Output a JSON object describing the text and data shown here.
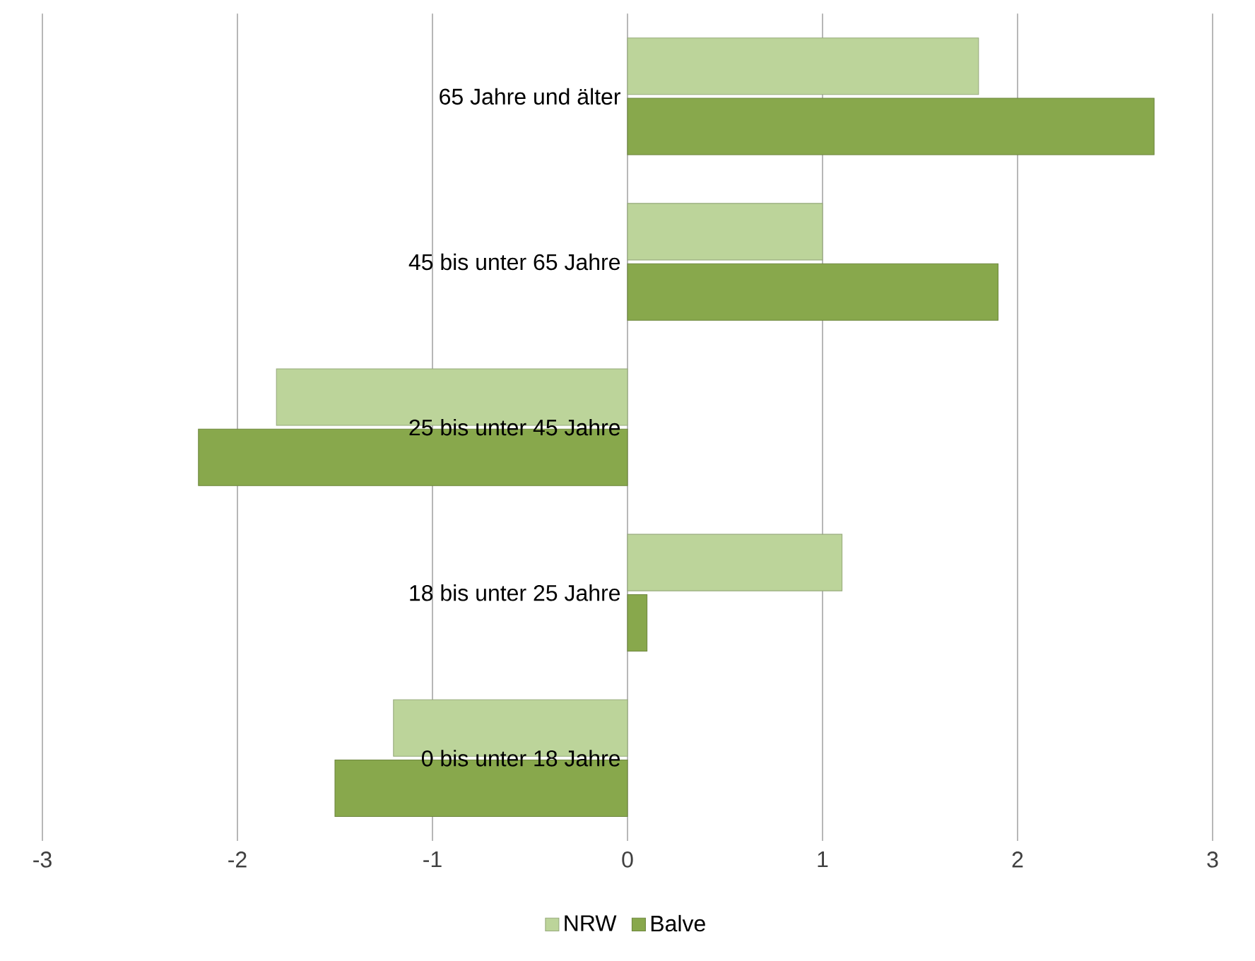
{
  "chart_data": {
    "type": "bar",
    "orientation": "horizontal",
    "categories": [
      "65 Jahre und älter",
      "45 bis unter 65 Jahre",
      "25 bis unter 45 Jahre",
      "18 bis unter 25 Jahre",
      "0 bis unter 18 Jahre"
    ],
    "series": [
      {
        "name": "NRW",
        "color": "#bcd49a",
        "values": [
          1.8,
          1.0,
          -1.8,
          1.1,
          -1.2
        ]
      },
      {
        "name": "Balve",
        "color": "#88a84c",
        "values": [
          2.7,
          1.9,
          -2.2,
          0.1,
          -1.5
        ]
      }
    ],
    "xlim": [
      -3,
      3
    ],
    "xticks": [
      -3,
      -2,
      -1,
      0,
      1,
      2,
      3
    ],
    "grid": "x",
    "legend": "bottom"
  }
}
